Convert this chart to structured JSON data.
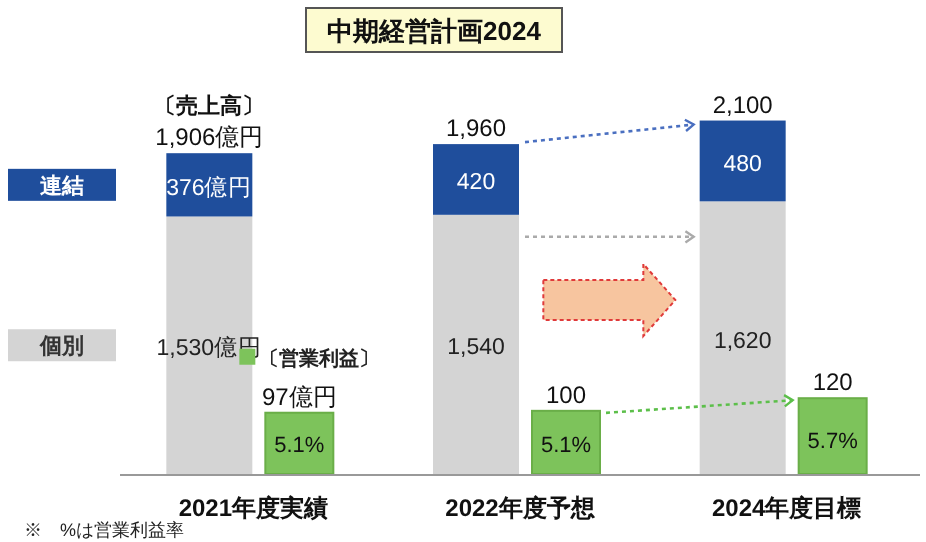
{
  "chart_data": {
    "type": "bar",
    "title": "中期経営計画2024",
    "categories": [
      "2021年度実績",
      "2022年度予想",
      "2024年度目標"
    ],
    "stacked": true,
    "legend": "left",
    "tick_labels": "x",
    "series": [
      {
        "name": "個別",
        "color": "#d4d4d4",
        "values": [
          1530,
          1540,
          1620
        ],
        "value_labels": [
          "1,530億円",
          "1,540",
          "1,620"
        ]
      },
      {
        "name": "連結",
        "color": "#1f4e9c",
        "values": [
          376,
          420,
          480
        ],
        "value_labels": [
          "376億円",
          "420",
          "480"
        ]
      },
      {
        "name": "〔営業利益〕",
        "color": "#7dc35b",
        "axis": "y2",
        "values": [
          97,
          100,
          120
        ],
        "value_labels": [
          "97億円",
          "100",
          "120"
        ]
      }
    ],
    "totals": [
      "1,906億円",
      "1,960",
      "2,100"
    ],
    "annotations": [
      "〔売上高〕",
      {
        "text": "5.1%",
        "x": "2021年度実績",
        "y": 180
      },
      {
        "text": "5.1%",
        "x": "2022年度予想",
        "y": 180
      },
      {
        "text": "5.7%",
        "x": "2024年度目標",
        "y": 200
      },
      "※　%は営業利益率"
    ]
  }
}
